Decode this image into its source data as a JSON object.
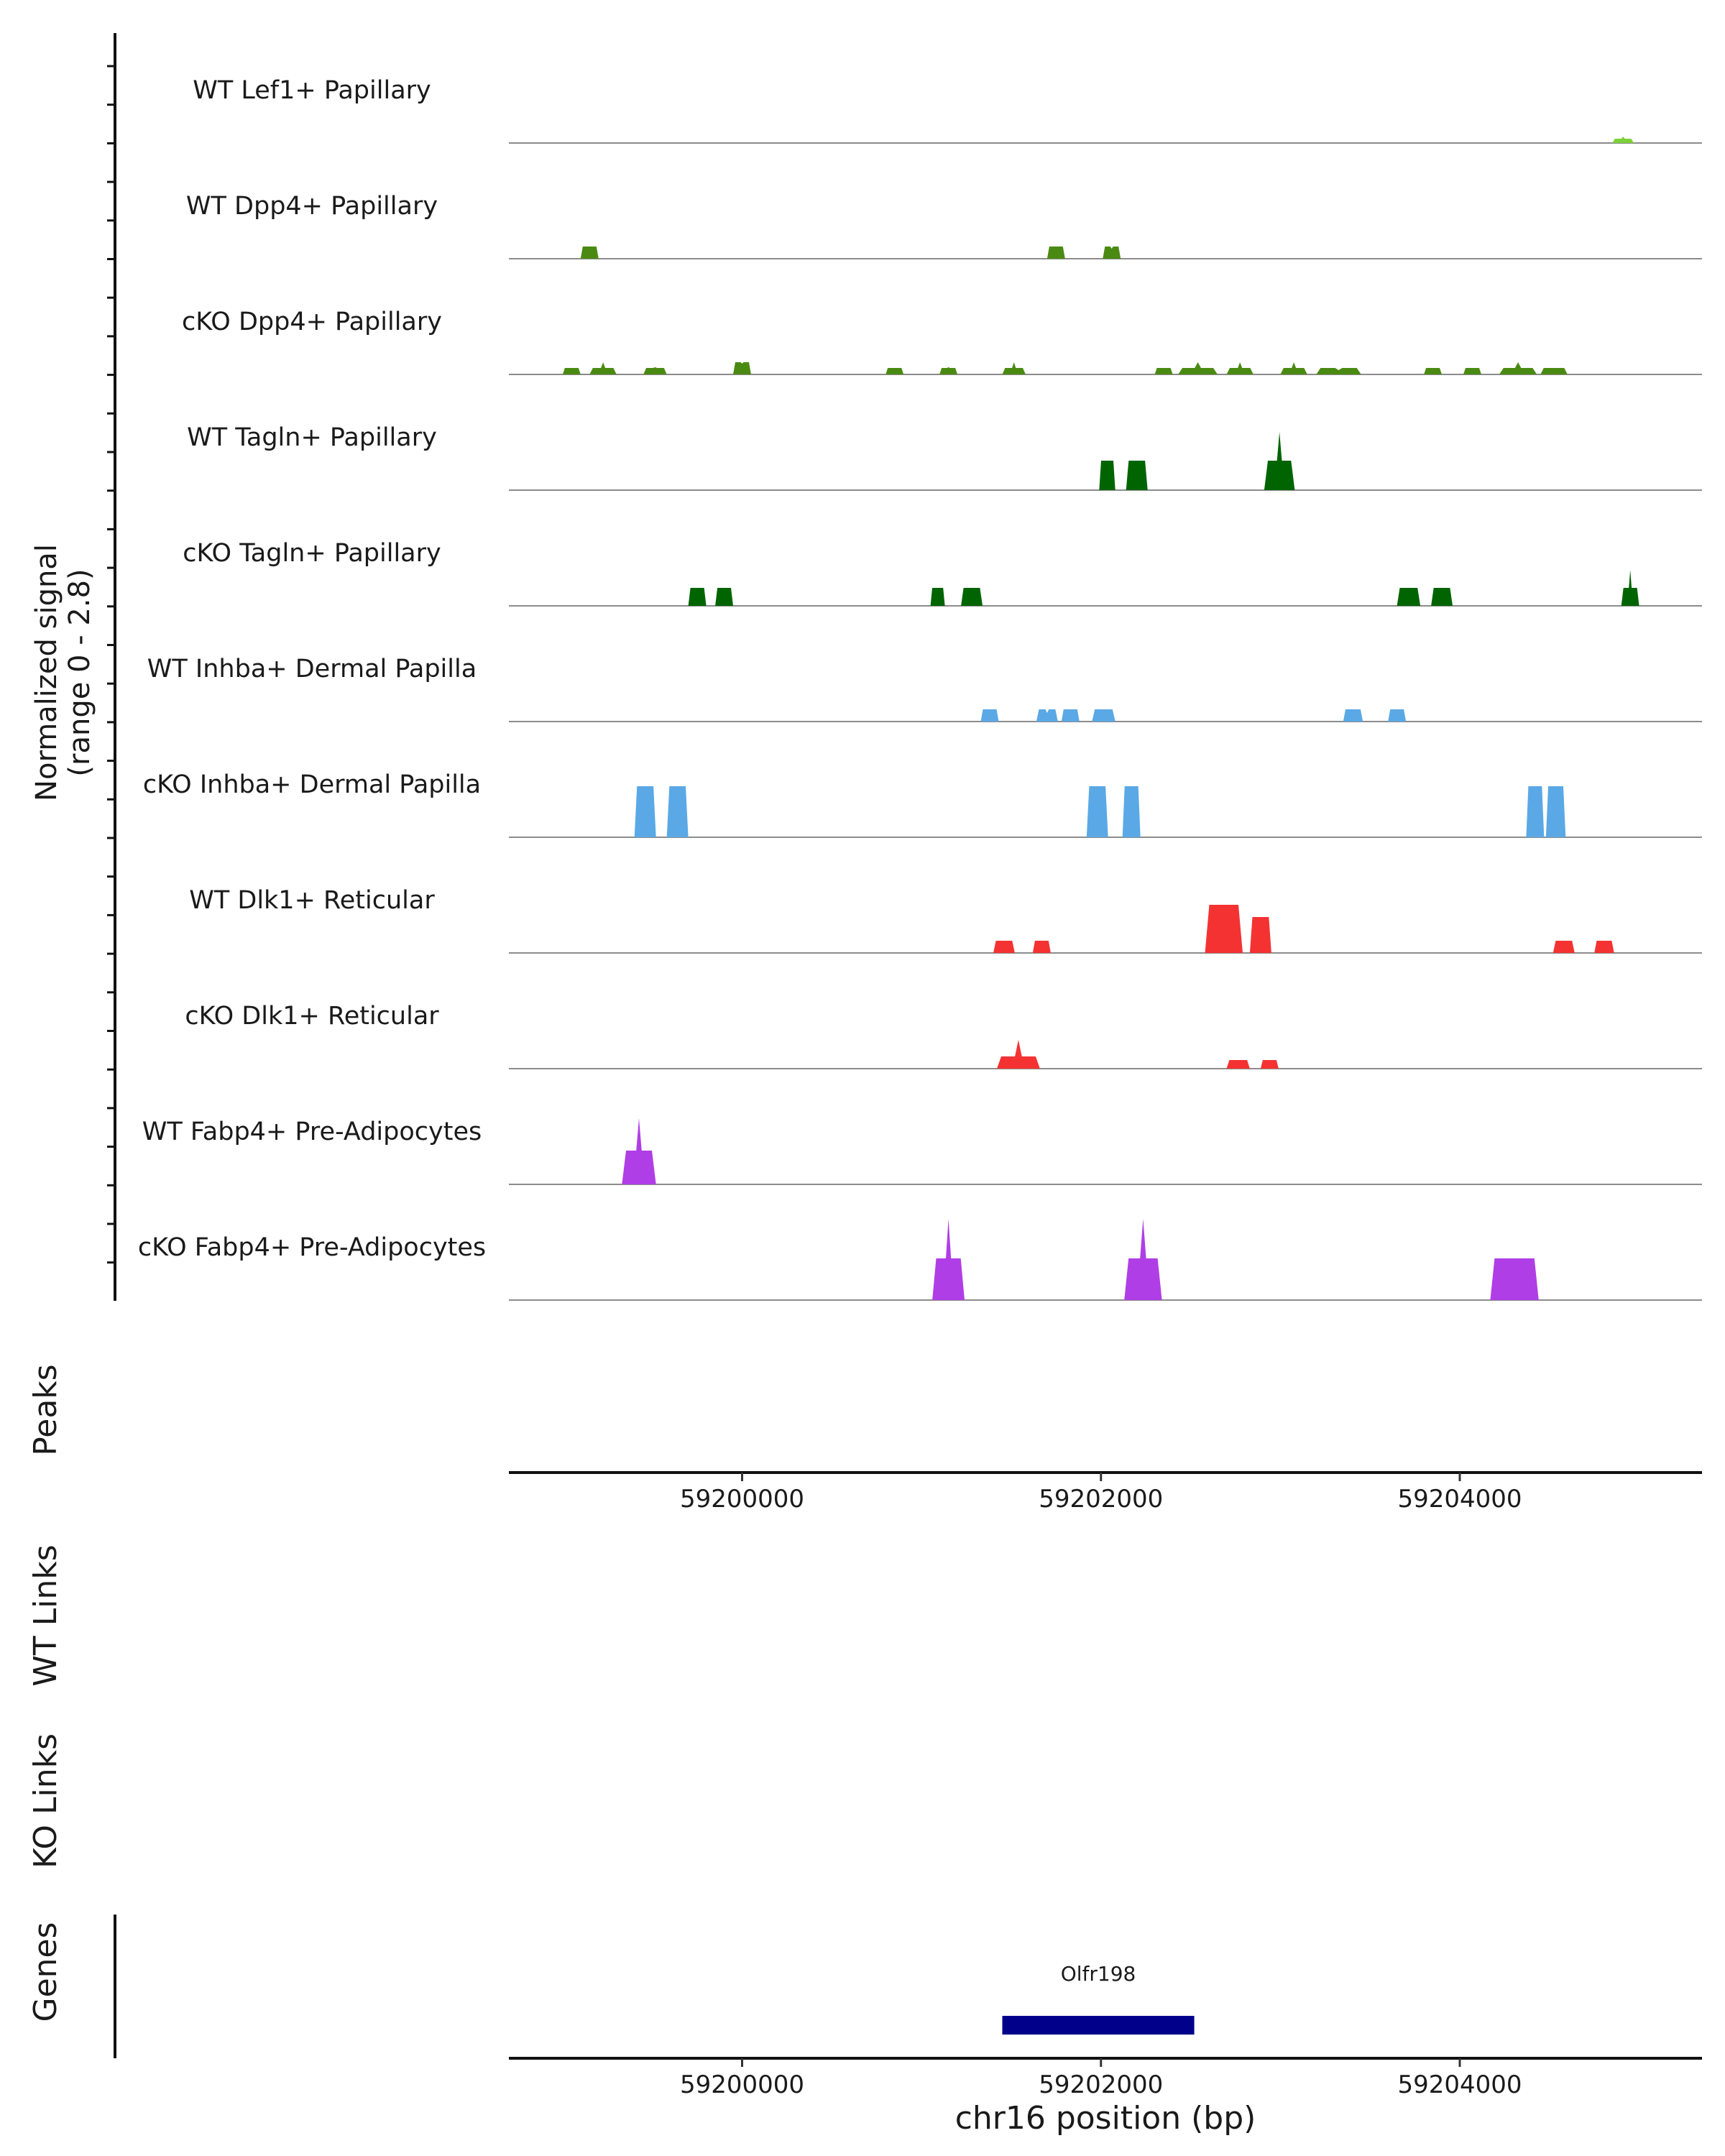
{
  "chart_data": {
    "type": "area",
    "genome_region": "chr16",
    "x_range": [
      59198700,
      59205350
    ],
    "y_range": [
      0,
      2.8
    ],
    "y_axis_title_line1": "Normalized signal",
    "y_axis_title_line2": "(range 0 - 2.8)",
    "x_axis_title": "chr16 position (bp)",
    "x_ticks": [
      "59200000",
      "59202000",
      "59204000"
    ],
    "x_tick_values": [
      59200000,
      59202000,
      59204000
    ],
    "tracks": [
      {
        "name": "WT Lef1+ Papillary",
        "color": "#7cd13a",
        "peaks": [
          [
            59204850,
            59204970,
            0.12,
            0.18
          ]
        ]
      },
      {
        "name": "WT Dpp4+ Papillary",
        "color": "#4a8a12",
        "peaks": [
          [
            59199100,
            59199200,
            0.34,
            0.34
          ],
          [
            59201700,
            59201800,
            0.34,
            0.34
          ],
          [
            59202010,
            59202110,
            0.34,
            0.28
          ]
        ]
      },
      {
        "name": "cKO Dpp4+ Papillary",
        "color": "#4a8a12",
        "peaks": [
          [
            59199000,
            59199100,
            0.18,
            0.18
          ],
          [
            59199150,
            59199300,
            0.18,
            0.34
          ],
          [
            59199450,
            59199580,
            0.18,
            0.2
          ],
          [
            59199950,
            59200050,
            0.34,
            0.3
          ],
          [
            59200800,
            59200900,
            0.18,
            0.18
          ],
          [
            59201100,
            59201200,
            0.18,
            0.2
          ],
          [
            59201450,
            59201580,
            0.18,
            0.34
          ],
          [
            59202300,
            59202400,
            0.18,
            0.18
          ],
          [
            59202430,
            59202650,
            0.18,
            0.34
          ],
          [
            59202700,
            59202850,
            0.18,
            0.34
          ],
          [
            59203000,
            59203150,
            0.18,
            0.34
          ],
          [
            59203200,
            59203450,
            0.18,
            0.12
          ],
          [
            59203800,
            59203900,
            0.18,
            0.18
          ],
          [
            59204020,
            59204120,
            0.18,
            0.18
          ],
          [
            59204220,
            59204430,
            0.18,
            0.34
          ],
          [
            59204450,
            59204600,
            0.18,
            0.18
          ]
        ]
      },
      {
        "name": "WT Tagln+ Papillary",
        "color": "#006400",
        "peaks": [
          [
            59201990,
            59202080,
            0.82,
            0.82
          ],
          [
            59202140,
            59202260,
            0.82,
            0.82
          ],
          [
            59202910,
            59203080,
            0.82,
            1.62
          ]
        ]
      },
      {
        "name": "cKO Tagln+ Papillary",
        "color": "#006400",
        "peaks": [
          [
            59199700,
            59199800,
            0.5,
            0.5
          ],
          [
            59199850,
            59199950,
            0.5,
            0.5
          ],
          [
            59201050,
            59201130,
            0.5,
            0.5
          ],
          [
            59201220,
            59201340,
            0.5,
            0.5
          ],
          [
            59203650,
            59203780,
            0.5,
            0.5
          ],
          [
            59203840,
            59203960,
            0.5,
            0.5
          ],
          [
            59204900,
            59205000,
            0.5,
            1.0
          ]
        ]
      },
      {
        "name": "WT Inhba+ Dermal Papilla",
        "color": "#5aa9e6",
        "peaks": [
          [
            59201330,
            59201430,
            0.34,
            0.34
          ],
          [
            59201640,
            59201760,
            0.34,
            0.24
          ],
          [
            59201780,
            59201880,
            0.34,
            0.34
          ],
          [
            59201950,
            59202080,
            0.34,
            0.34
          ],
          [
            59203350,
            59203460,
            0.34,
            0.34
          ],
          [
            59203600,
            59203700,
            0.34,
            0.34
          ]
        ]
      },
      {
        "name": "cKO Inhba+ Dermal Papilla",
        "color": "#5aa9e6",
        "peaks": [
          [
            59199400,
            59199520,
            1.42,
            1.42
          ],
          [
            59199580,
            59199700,
            1.42,
            1.42
          ],
          [
            59201920,
            59202040,
            1.42,
            1.42
          ],
          [
            59202120,
            59202220,
            1.42,
            1.42
          ],
          [
            59204370,
            59204470,
            1.42,
            1.42
          ],
          [
            59204480,
            59204590,
            1.42,
            1.42
          ]
        ]
      },
      {
        "name": "WT Dlk1+ Reticular",
        "color": "#f53232",
        "peaks": [
          [
            59201400,
            59201520,
            0.34,
            0.34
          ],
          [
            59201620,
            59201720,
            0.34,
            0.34
          ],
          [
            59202580,
            59202790,
            1.34,
            1.34
          ],
          [
            59202830,
            59202950,
            1.0,
            1.0
          ],
          [
            59204520,
            59204640,
            0.34,
            0.34
          ],
          [
            59204750,
            59204860,
            0.34,
            0.34
          ]
        ]
      },
      {
        "name": "cKO Dlk1+ Reticular",
        "color": "#f53232",
        "peaks": [
          [
            59201420,
            59201660,
            0.34,
            0.8
          ],
          [
            59202700,
            59202830,
            0.24,
            0.24
          ],
          [
            59202890,
            59202990,
            0.24,
            0.24
          ]
        ]
      },
      {
        "name": "WT Fabp4+ Pre-Adipocytes",
        "color": "#b03ee6",
        "peaks": [
          [
            59199330,
            59199520,
            0.94,
            1.84
          ]
        ]
      },
      {
        "name": "cKO Fabp4+ Pre-Adipocytes",
        "color": "#b03ee6",
        "peaks": [
          [
            59201060,
            59201240,
            1.16,
            2.26
          ],
          [
            59202130,
            59202340,
            1.16,
            2.26
          ],
          [
            59204170,
            59204440,
            1.16,
            1.16
          ]
        ]
      }
    ],
    "side_panels": [
      "Peaks",
      "WT Links",
      "KO Links",
      "Genes"
    ],
    "genes": [
      {
        "name": "Olfr198",
        "start": 59201450,
        "end": 59202520,
        "color": "#00008b"
      }
    ]
  }
}
